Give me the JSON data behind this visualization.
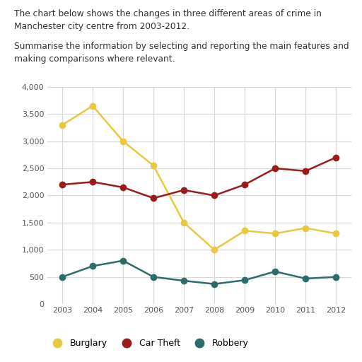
{
  "years": [
    2003,
    2004,
    2005,
    2006,
    2007,
    2008,
    2009,
    2010,
    2011,
    2012
  ],
  "burglary": [
    3300,
    3650,
    3000,
    2550,
    1500,
    1000,
    1350,
    1300,
    1400,
    1300
  ],
  "car_theft": [
    2200,
    2250,
    2150,
    1950,
    2100,
    2000,
    2200,
    2500,
    2450,
    2700
  ],
  "robbery": [
    500,
    700,
    800,
    500,
    430,
    370,
    440,
    600,
    470,
    500
  ],
  "burglary_color": "#E8C840",
  "car_theft_color": "#9B1B1B",
  "robbery_color": "#2E6B6B",
  "title_line1": "The chart below shows the changes in three different areas of crime in",
  "title_line2": "Manchester city centre from 2003-2012.",
  "subtitle_line1": "Summarise the information by selecting and reporting the main features and",
  "subtitle_line2": "making comparisons where relevant.",
  "ylim": [
    0,
    4000
  ],
  "yticks": [
    0,
    500,
    1000,
    1500,
    2000,
    2500,
    3000,
    3500,
    4000
  ],
  "ytick_labels": [
    "0",
    "500",
    "1,000",
    "1,500",
    "2,000",
    "2,500",
    "3,000",
    "3,500",
    "4,000"
  ],
  "legend_labels": [
    "Burglary",
    "Car Theft",
    "Robbery"
  ],
  "bg_color": "#ffffff",
  "grid_color": "#d8d8d8",
  "marker_size": 6,
  "line_width": 1.8,
  "text_color": "#333333"
}
